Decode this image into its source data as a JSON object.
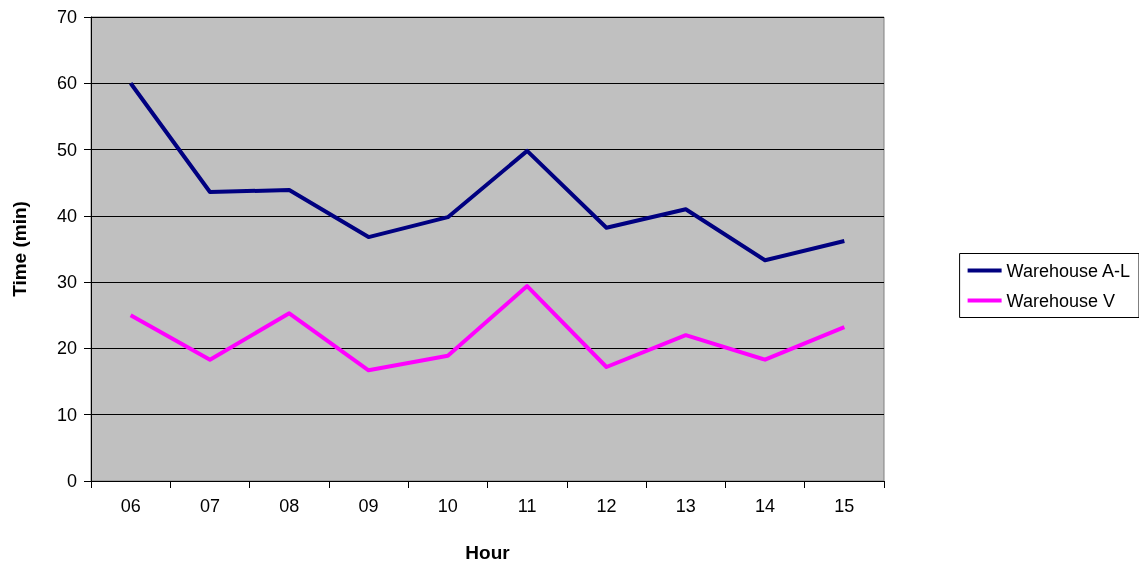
{
  "chart_data": {
    "type": "line",
    "xlabel": "Hour",
    "ylabel": "Time (min)",
    "categories": [
      "06",
      "07",
      "08",
      "09",
      "10",
      "11",
      "12",
      "13",
      "14",
      "15"
    ],
    "series": [
      {
        "name": "Warehouse A-L",
        "color": "#000080",
        "values": [
          60,
          43.6,
          43.9,
          36.8,
          39.8,
          49.8,
          38.2,
          41.0,
          33.3,
          36.2
        ]
      },
      {
        "name": "Warehouse V",
        "color": "#ff00ff",
        "values": [
          25.0,
          18.3,
          25.3,
          16.7,
          18.9,
          29.4,
          17.2,
          22.0,
          18.3,
          23.2
        ]
      }
    ],
    "ylim": [
      0,
      70
    ],
    "yticks": [
      0,
      10,
      20,
      30,
      40,
      50,
      60,
      70
    ],
    "grid": "y",
    "legend": "right",
    "marker": "none",
    "line_style": "solid"
  }
}
